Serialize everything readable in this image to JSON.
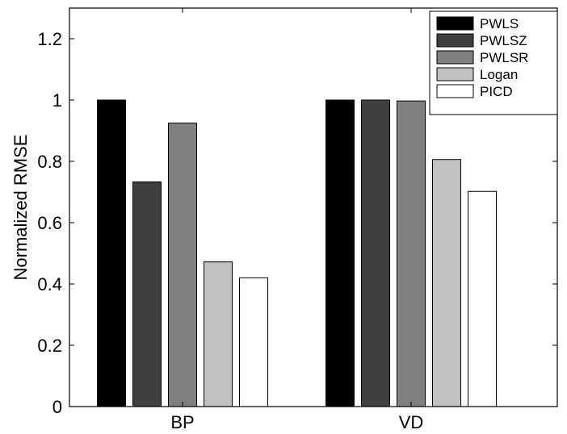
{
  "chart_data": {
    "type": "bar",
    "categories": [
      "BP",
      "VD"
    ],
    "series": [
      {
        "name": "PWLS",
        "color": "#000000",
        "values": [
          1.0,
          1.0
        ]
      },
      {
        "name": "PWLSZ",
        "color": "#404040",
        "values": [
          0.733,
          1.0
        ]
      },
      {
        "name": "PWLSR",
        "color": "#808080",
        "values": [
          0.925,
          0.997
        ]
      },
      {
        "name": "Logan",
        "color": "#c0c0c0",
        "values": [
          0.472,
          0.806
        ]
      },
      {
        "name": "PICD",
        "color": "#ffffff",
        "values": [
          0.42,
          0.702
        ]
      }
    ],
    "title": "",
    "xlabel": "",
    "ylabel": "Normalized RMSE",
    "ylim": [
      0,
      1.3
    ],
    "yticks": [
      "0",
      "0.2",
      "0.4",
      "0.6",
      "0.8",
      "1",
      "1.2"
    ],
    "grid": false,
    "legend_position": "top-right"
  }
}
